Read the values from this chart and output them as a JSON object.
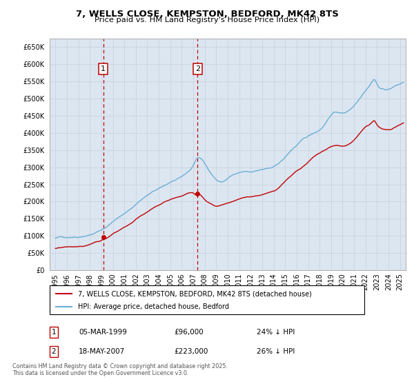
{
  "title": "7, WELLS CLOSE, KEMPSTON, BEDFORD, MK42 8TS",
  "subtitle": "Price paid vs. HM Land Registry's House Price Index (HPI)",
  "ylim": [
    0,
    675000
  ],
  "yticks": [
    0,
    50000,
    100000,
    150000,
    200000,
    250000,
    300000,
    350000,
    400000,
    450000,
    500000,
    550000,
    600000,
    650000
  ],
  "ytick_labels": [
    "£0",
    "£50K",
    "£100K",
    "£150K",
    "£200K",
    "£250K",
    "£300K",
    "£350K",
    "£400K",
    "£450K",
    "£500K",
    "£550K",
    "£600K",
    "£650K"
  ],
  "sale1_date_num": 1999.17,
  "sale1_price": 96000,
  "sale1_label": "1",
  "sale1_date_str": "05-MAR-1999",
  "sale1_amount_str": "£96,000",
  "sale1_hpi_str": "24% ↓ HPI",
  "sale2_date_num": 2007.37,
  "sale2_price": 223000,
  "sale2_label": "2",
  "sale2_date_str": "18-MAY-2007",
  "sale2_amount_str": "£223,000",
  "sale2_hpi_str": "26% ↓ HPI",
  "hpi_line_color": "#6baed6",
  "price_line_color": "#c00000",
  "grid_color": "#c8d4e0",
  "bg_color": "#dce6f1",
  "legend_label_price": "7, WELLS CLOSE, KEMPSTON, BEDFORD, MK42 8TS (detached house)",
  "legend_label_hpi": "HPI: Average price, detached house, Bedford",
  "footer": "Contains HM Land Registry data © Crown copyright and database right 2025.\nThis data is licensed under the Open Government Licence v3.0.",
  "xlim": [
    1994.5,
    2025.5
  ]
}
